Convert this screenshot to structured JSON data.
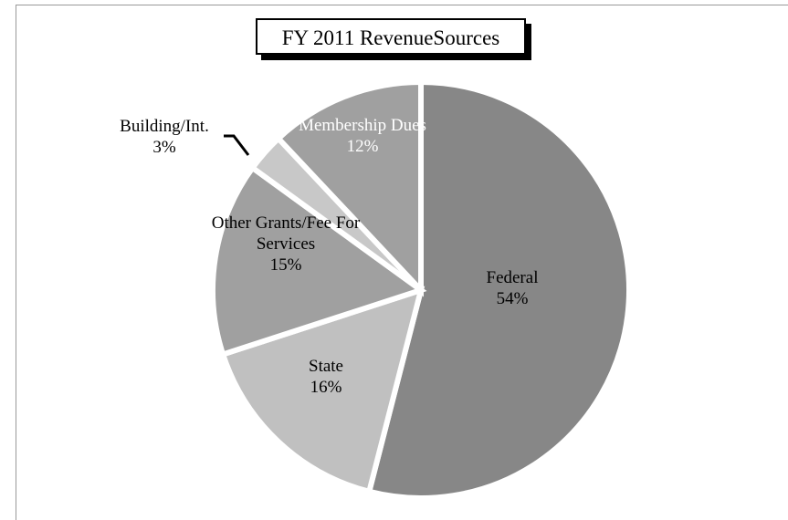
{
  "chart_data": {
    "type": "pie",
    "title": "FY 2011 RevenueSources",
    "categories": [
      "Federal",
      "State",
      "Other Grants/Fee For Services",
      "Building/Int.",
      "Membership Dues"
    ],
    "values": [
      54,
      16,
      15,
      3,
      12
    ],
    "value_labels": [
      "54%",
      "16%",
      "15%",
      "3%",
      "12%"
    ],
    "colors": [
      "#878787",
      "#c0c0c0",
      "#a0a0a0",
      "#c8c8c8",
      "#a0a0a0"
    ]
  }
}
